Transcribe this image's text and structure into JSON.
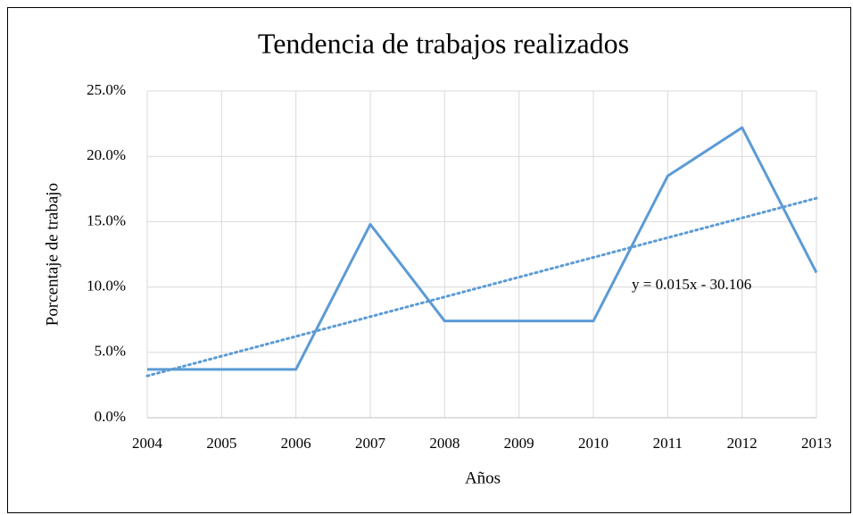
{
  "chart_data": {
    "type": "line",
    "title": "Tendencia de trabajos realizados",
    "x_label": "Años",
    "y_label": "Porcentaje de trabajo",
    "categories": [
      "2004",
      "2005",
      "2006",
      "2007",
      "2008",
      "2009",
      "2010",
      "2011",
      "2012",
      "2013"
    ],
    "series": [
      {
        "name": "Porcentaje de trabajo",
        "color": "#5b9bd5",
        "values": [
          3.7,
          3.7,
          3.7,
          14.8,
          7.4,
          7.4,
          7.4,
          18.5,
          22.2,
          11.1
        ]
      }
    ],
    "trendline": {
      "color": "#5b9bd5",
      "values": [
        3.2,
        16.8
      ],
      "label": "y = 0.015x - 30.106"
    },
    "ylim": [
      0,
      25
    ],
    "yticks": [
      {
        "value": 0,
        "label": "0.0%"
      },
      {
        "value": 5,
        "label": "5.0%"
      },
      {
        "value": 10,
        "label": "10.0%"
      },
      {
        "value": 15,
        "label": "15.0%"
      },
      {
        "value": 20,
        "label": "20.0%"
      },
      {
        "value": 25,
        "label": "25.0%"
      }
    ],
    "grid": true
  }
}
